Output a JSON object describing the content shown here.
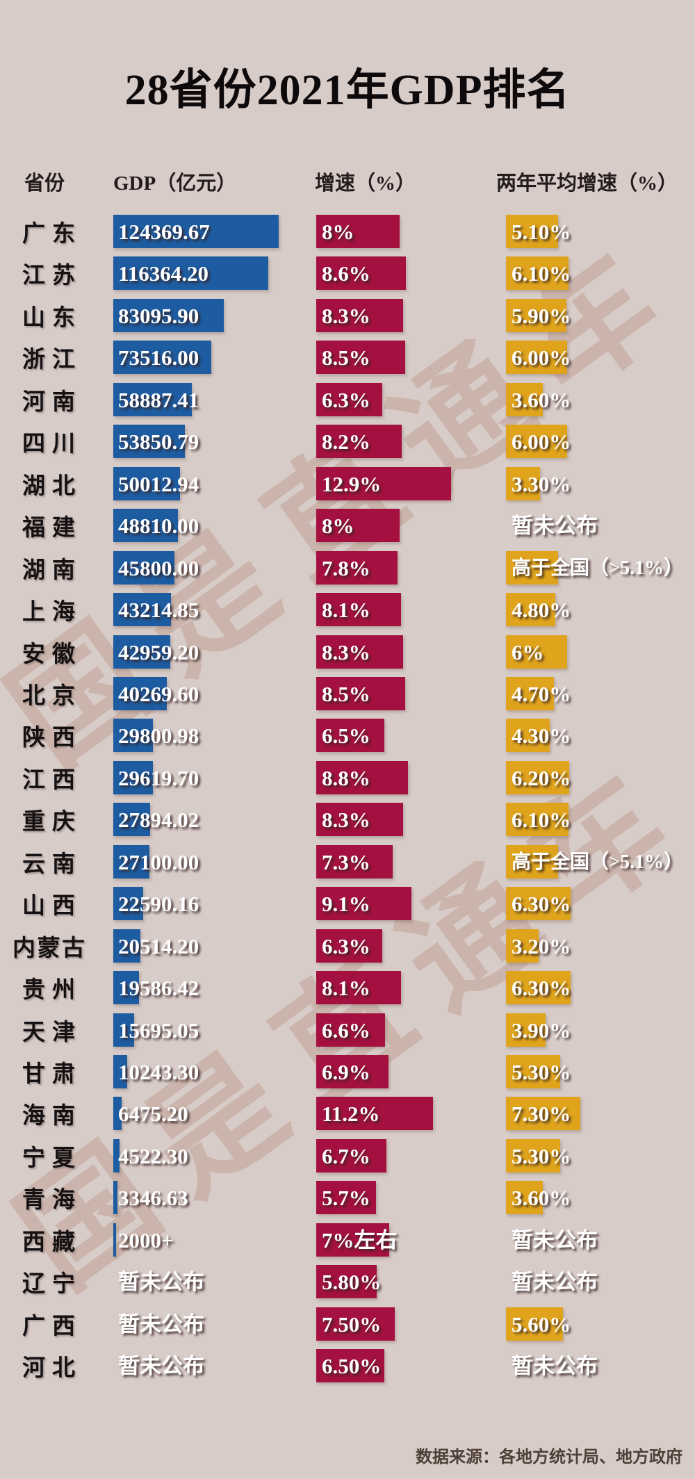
{
  "page": {
    "background": "#d8ccc8"
  },
  "title": "28省份2021年GDP排名",
  "watermark": {
    "text": "国是直通车"
  },
  "source_note": "数据来源：各地方统计局、地方政府",
  "chart_data": {
    "type": "bar",
    "title": "28省份2021年GDP排名",
    "columns": [
      "省份",
      "GDP（亿元）",
      "增速（%）",
      "两年平均增速（%）"
    ],
    "colors": {
      "gdp_bar": "#1d5ca1",
      "growth_bar": "#a41140",
      "avg_bar": "#dfa41c",
      "background": "#d8ccc8"
    },
    "legend_position": "none",
    "grid": false,
    "rows": [
      {
        "province": "广东",
        "gdp": "124369.67",
        "gdp_value": 124369.67,
        "growth": "8%",
        "growth_value": 8,
        "avg": "5.10%",
        "avg_value": 5.1
      },
      {
        "province": "江苏",
        "gdp": "116364.20",
        "gdp_value": 116364.2,
        "growth": "8.6%",
        "growth_value": 8.6,
        "avg": "6.10%",
        "avg_value": 6.1
      },
      {
        "province": "山东",
        "gdp": "83095.90",
        "gdp_value": 83095.9,
        "growth": "8.3%",
        "growth_value": 8.3,
        "avg": "5.90%",
        "avg_value": 5.9
      },
      {
        "province": "浙江",
        "gdp": "73516.00",
        "gdp_value": 73516.0,
        "growth": "8.5%",
        "growth_value": 8.5,
        "avg": "6.00%",
        "avg_value": 6.0
      },
      {
        "province": "河南",
        "gdp": "58887.41",
        "gdp_value": 58887.41,
        "growth": "6.3%",
        "growth_value": 6.3,
        "avg": "3.60%",
        "avg_value": 3.6
      },
      {
        "province": "四川",
        "gdp": "53850.79",
        "gdp_value": 53850.79,
        "growth": "8.2%",
        "growth_value": 8.2,
        "avg": "6.00%",
        "avg_value": 6.0
      },
      {
        "province": "湖北",
        "gdp": "50012.94",
        "gdp_value": 50012.94,
        "growth": "12.9%",
        "growth_value": 12.9,
        "avg": "3.30%",
        "avg_value": 3.3
      },
      {
        "province": "福建",
        "gdp": "48810.00",
        "gdp_value": 48810.0,
        "growth": "8%",
        "growth_value": 8,
        "avg": "暂未公布",
        "avg_value": null
      },
      {
        "province": "湖南",
        "gdp": "45800.00",
        "gdp_value": 45800.0,
        "growth": "7.8%",
        "growth_value": 7.8,
        "avg": "高于全国（>5.1%）",
        "avg_value": 5.1
      },
      {
        "province": "上海",
        "gdp": "43214.85",
        "gdp_value": 43214.85,
        "growth": "8.1%",
        "growth_value": 8.1,
        "avg": "4.80%",
        "avg_value": 4.8
      },
      {
        "province": "安徽",
        "gdp": "42959.20",
        "gdp_value": 42959.2,
        "growth": "8.3%",
        "growth_value": 8.3,
        "avg": "6%",
        "avg_value": 6.0
      },
      {
        "province": "北京",
        "gdp": "40269.60",
        "gdp_value": 40269.6,
        "growth": "8.5%",
        "growth_value": 8.5,
        "avg": "4.70%",
        "avg_value": 4.7
      },
      {
        "province": "陕西",
        "gdp": "29800.98",
        "gdp_value": 29800.98,
        "growth": "6.5%",
        "growth_value": 6.5,
        "avg": "4.30%",
        "avg_value": 4.3
      },
      {
        "province": "江西",
        "gdp": "29619.70",
        "gdp_value": 29619.7,
        "growth": "8.8%",
        "growth_value": 8.8,
        "avg": "6.20%",
        "avg_value": 6.2
      },
      {
        "province": "重庆",
        "gdp": "27894.02",
        "gdp_value": 27894.02,
        "growth": "8.3%",
        "growth_value": 8.3,
        "avg": "6.10%",
        "avg_value": 6.1
      },
      {
        "province": "云南",
        "gdp": "27100.00",
        "gdp_value": 27100.0,
        "growth": "7.3%",
        "growth_value": 7.3,
        "avg": "高于全国（>5.1%）",
        "avg_value": 5.1
      },
      {
        "province": "山西",
        "gdp": "22590.16",
        "gdp_value": 22590.16,
        "growth": "9.1%",
        "growth_value": 9.1,
        "avg": "6.30%",
        "avg_value": 6.3
      },
      {
        "province": "内蒙古",
        "gdp": "20514.20",
        "gdp_value": 20514.2,
        "growth": "6.3%",
        "growth_value": 6.3,
        "avg": "3.20%",
        "avg_value": 3.2
      },
      {
        "province": "贵州",
        "gdp": "19586.42",
        "gdp_value": 19586.42,
        "growth": "8.1%",
        "growth_value": 8.1,
        "avg": "6.30%",
        "avg_value": 6.3
      },
      {
        "province": "天津",
        "gdp": "15695.05",
        "gdp_value": 15695.05,
        "growth": "6.6%",
        "growth_value": 6.6,
        "avg": "3.90%",
        "avg_value": 3.9
      },
      {
        "province": "甘肃",
        "gdp": "10243.30",
        "gdp_value": 10243.3,
        "growth": "6.9%",
        "growth_value": 6.9,
        "avg": "5.30%",
        "avg_value": 5.3
      },
      {
        "province": "海南",
        "gdp": "6475.20",
        "gdp_value": 6475.2,
        "growth": "11.2%",
        "growth_value": 11.2,
        "avg": "7.30%",
        "avg_value": 7.3
      },
      {
        "province": "宁夏",
        "gdp": "4522.30",
        "gdp_value": 4522.3,
        "growth": "6.7%",
        "growth_value": 6.7,
        "avg": "5.30%",
        "avg_value": 5.3
      },
      {
        "province": "青海",
        "gdp": "3346.63",
        "gdp_value": 3346.63,
        "growth": "5.7%",
        "growth_value": 5.7,
        "avg": "3.60%",
        "avg_value": 3.6
      },
      {
        "province": "西藏",
        "gdp": "2000+",
        "gdp_value": 2000,
        "growth": "7%左右",
        "growth_value": 7,
        "avg": "暂未公布",
        "avg_value": null
      },
      {
        "province": "辽宁",
        "gdp": "暂未公布",
        "gdp_value": null,
        "growth": "5.80%",
        "growth_value": 5.8,
        "avg": "暂未公布",
        "avg_value": null
      },
      {
        "province": "广西",
        "gdp": "暂未公布",
        "gdp_value": null,
        "growth": "7.50%",
        "growth_value": 7.5,
        "avg": "5.60%",
        "avg_value": 5.6
      },
      {
        "province": "河北",
        "gdp": "暂未公布",
        "gdp_value": null,
        "growth": "6.50%",
        "growth_value": 6.5,
        "avg": "暂未公布",
        "avg_value": null
      }
    ]
  }
}
